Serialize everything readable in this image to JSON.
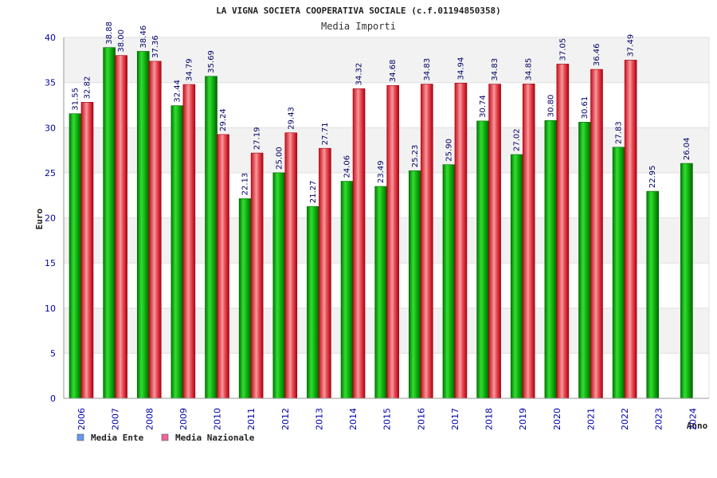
{
  "chart_data": {
    "type": "bar",
    "title": "LA VIGNA SOCIETA COOPERATIVA SOCIALE (c.f.01194850358)",
    "subtitle": "Media Importi",
    "xlabel": "Anno",
    "ylabel": "Euro",
    "ylim": [
      0,
      40
    ],
    "yticks": [
      0,
      5,
      10,
      15,
      20,
      25,
      30,
      35,
      40
    ],
    "categories": [
      "2006",
      "2007",
      "2008",
      "2009",
      "2010",
      "2011",
      "2012",
      "2013",
      "2014",
      "2015",
      "2016",
      "2017",
      "2018",
      "2019",
      "2020",
      "2021",
      "2022",
      "2023",
      "2024"
    ],
    "series": [
      {
        "name": "Media Ente",
        "color": "#00b000",
        "values": [
          31.55,
          38.88,
          38.46,
          32.44,
          35.69,
          22.13,
          25.0,
          21.27,
          24.06,
          23.49,
          25.23,
          25.9,
          30.74,
          27.02,
          30.8,
          30.61,
          27.83,
          22.95,
          26.04
        ],
        "labels": [
          "31.55",
          "38.88",
          "38.46",
          "32.44",
          "35.69",
          "22.13",
          "25.00",
          "21.27",
          "24.06",
          "23.49",
          "25.23",
          "25.90",
          "30.74",
          "27.02",
          "30.80",
          "30.61",
          "27.83",
          "22.95",
          "26.04"
        ]
      },
      {
        "name": "Media Nazionale",
        "color": "#e8202a",
        "values": [
          32.82,
          38.0,
          37.36,
          34.79,
          29.24,
          27.19,
          29.43,
          27.71,
          34.32,
          34.68,
          34.83,
          34.94,
          34.83,
          34.85,
          37.05,
          36.46,
          37.49,
          null,
          null
        ],
        "labels": [
          "32.82",
          "38.00",
          "37.36",
          "34.79",
          "29.24",
          "27.19",
          "29.43",
          "27.71",
          "34.32",
          "34.68",
          "34.83",
          "34.94",
          "34.83",
          "34.85",
          "37.05",
          "36.46",
          "37.49",
          null,
          null
        ]
      }
    ],
    "legend": {
      "position": "bottom-left",
      "items": [
        {
          "label": "Media Ente",
          "color": "#6699ee"
        },
        {
          "label": "Media Nazionale",
          "color": "#ee6699"
        }
      ]
    },
    "grid": true
  }
}
